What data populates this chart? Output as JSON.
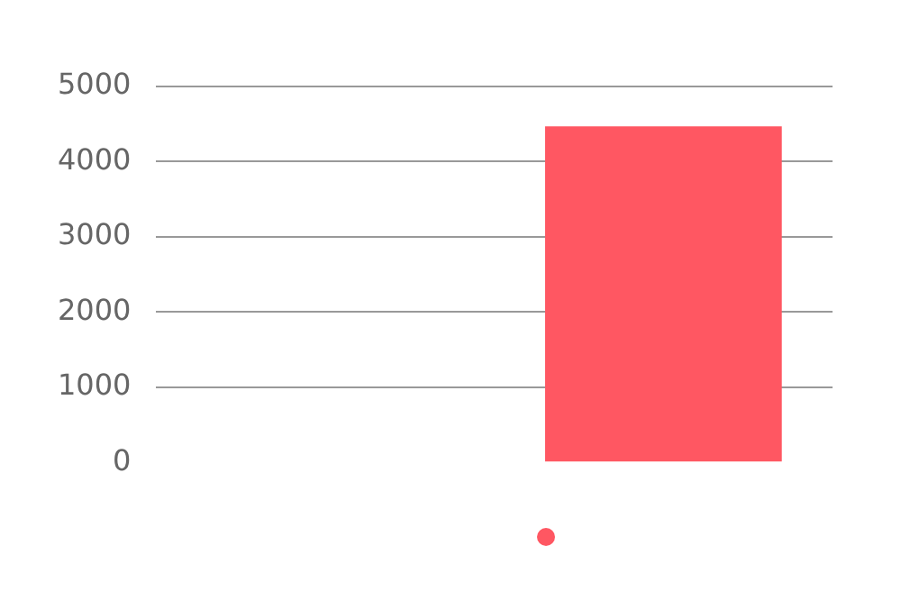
{
  "chart_data": {
    "type": "bar",
    "categories": [
      null,
      null
    ],
    "series": [
      {
        "color": "#ff5762",
        "values": [
          null,
          4470
        ]
      }
    ],
    "ylim": [
      0,
      5000
    ],
    "yticks": [
      0,
      1000,
      2000,
      3000,
      4000,
      5000
    ],
    "grid": "y"
  }
}
